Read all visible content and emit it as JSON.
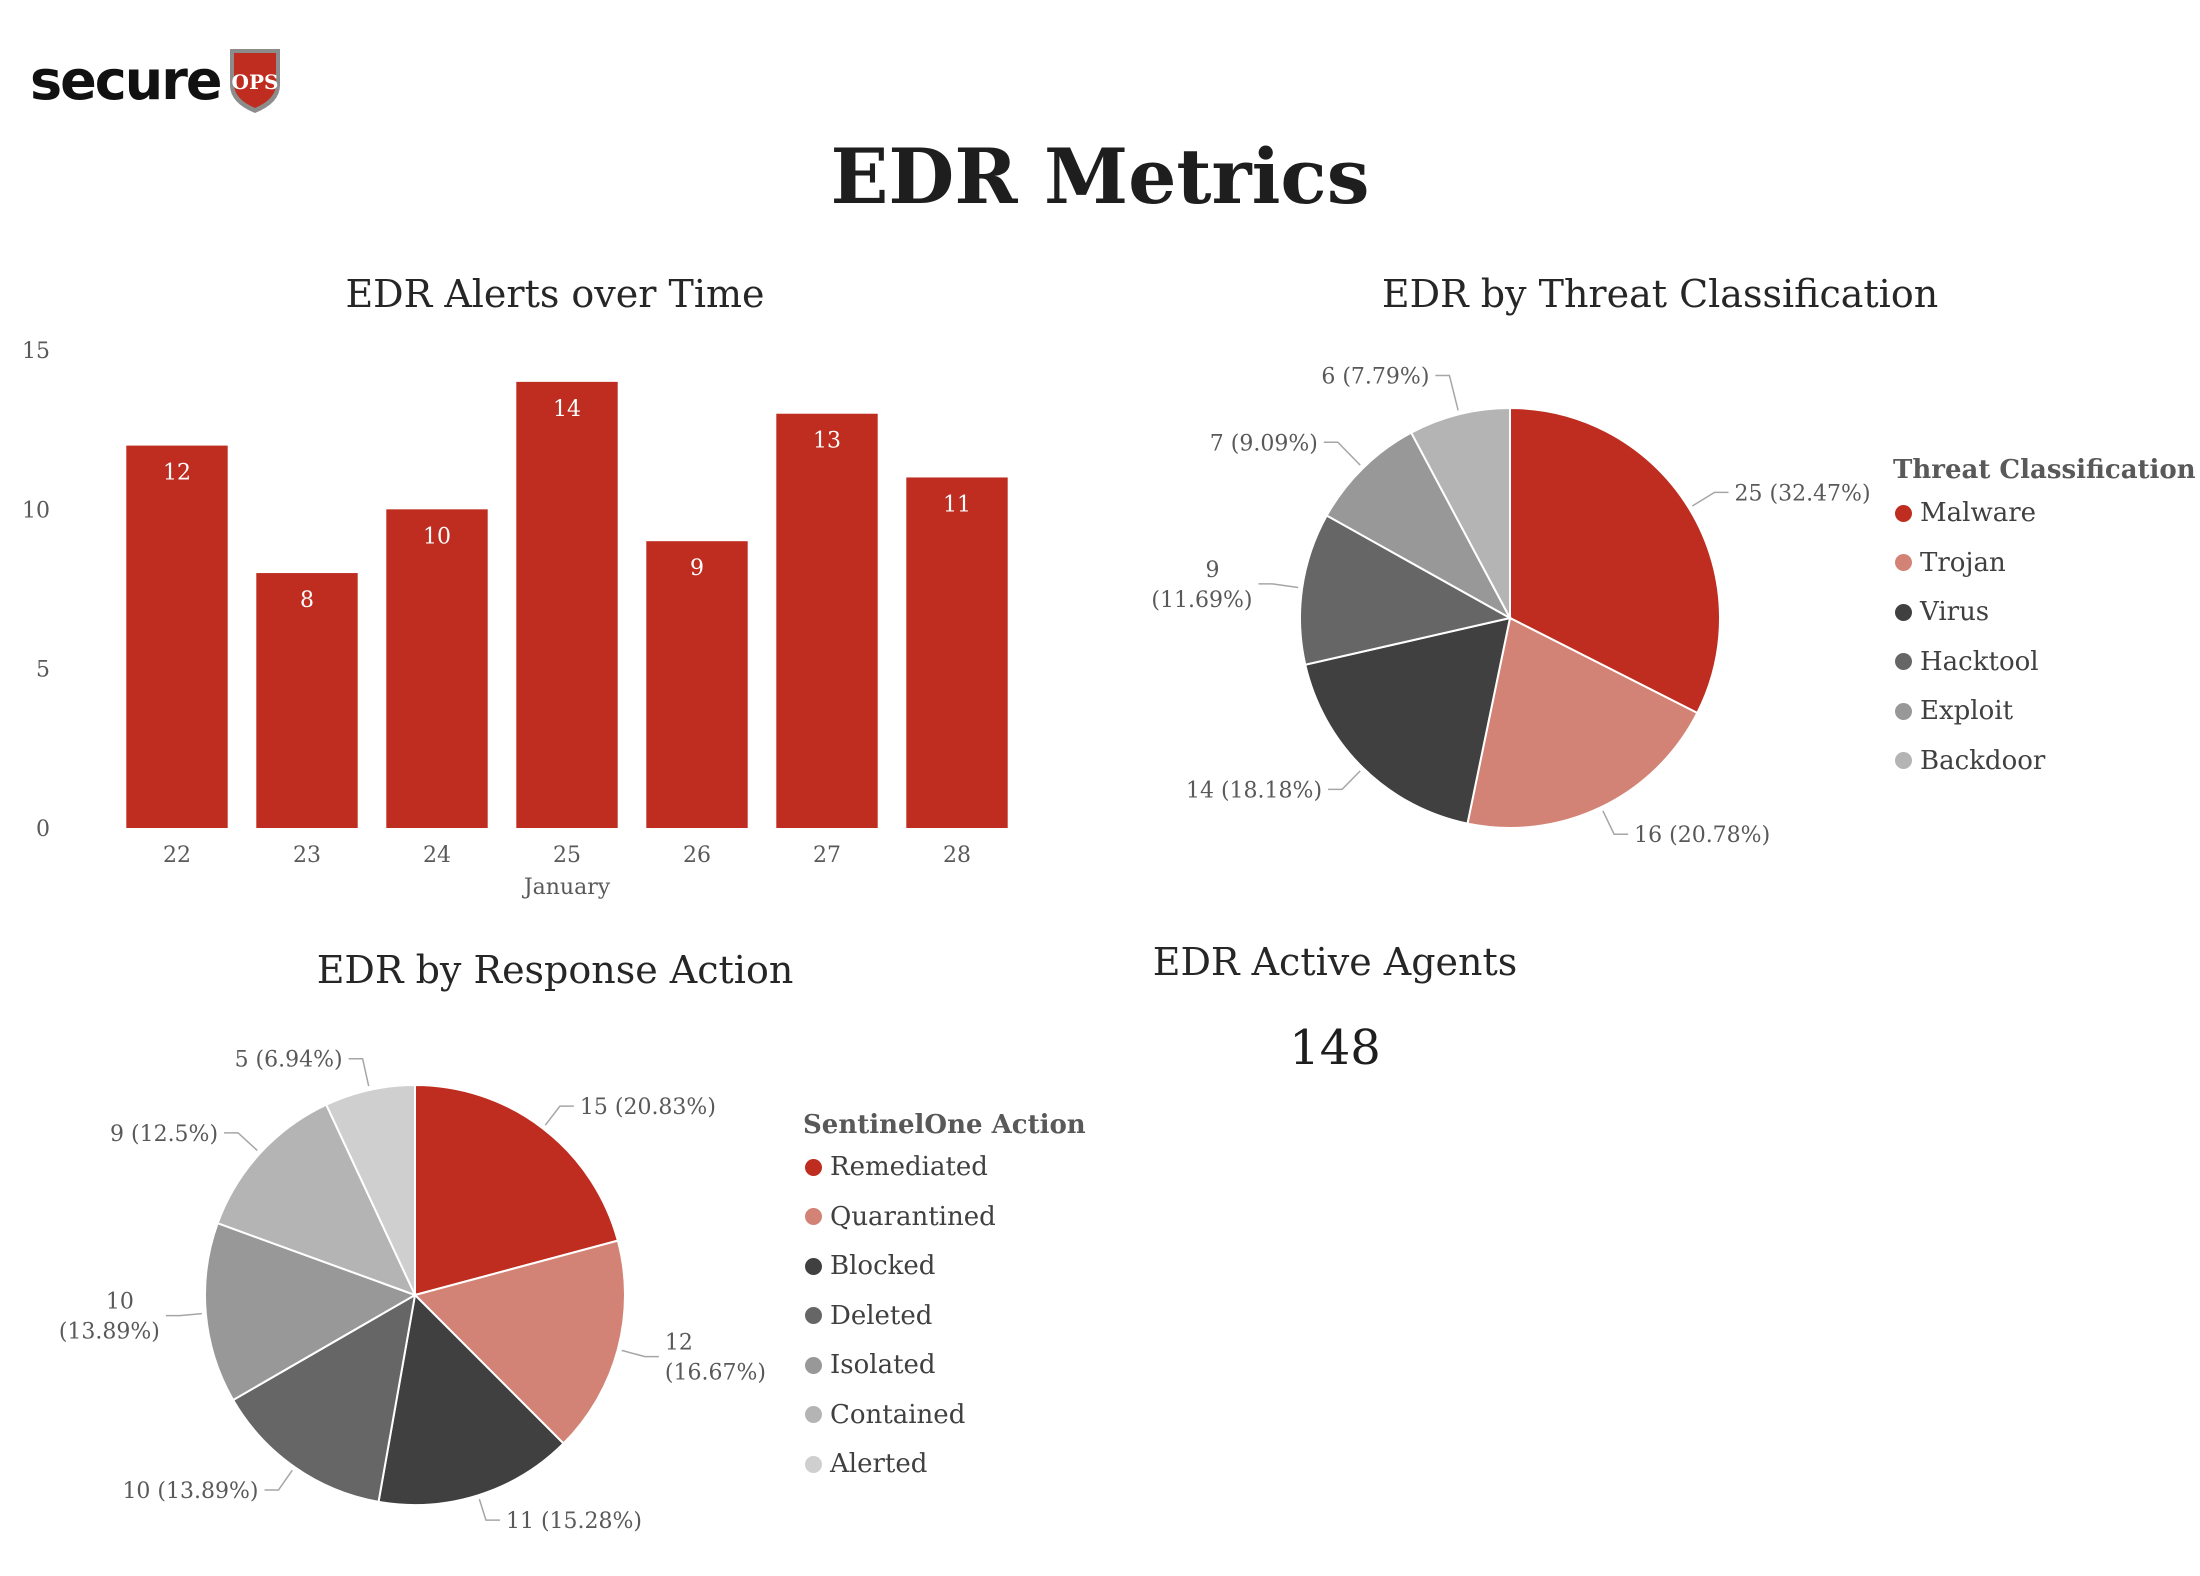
{
  "logo": {
    "text": "secure",
    "badge": "OPS"
  },
  "page_title": "EDR Metrics",
  "colors": {
    "bar": "#BE2D1F",
    "accent_red": "#BE2D1F",
    "salmon": "#D38375",
    "dark": "#404040",
    "mid_dark": "#666666",
    "mid": "#989898",
    "light": "#B4B4B4",
    "lightest": "#CFCFCF"
  },
  "chart_data": [
    {
      "type": "bar",
      "title": "EDR Alerts over Time",
      "categories": [
        "22",
        "23",
        "24",
        "25",
        "26",
        "27",
        "28"
      ],
      "values": [
        12,
        8,
        10,
        14,
        9,
        13,
        11
      ],
      "xlabel": "January",
      "ylabel": "",
      "ylim": [
        0,
        15
      ],
      "yticks": [
        "0",
        "5",
        "10",
        "15"
      ],
      "data_labels": [
        "12",
        "8",
        "10",
        "14",
        "9",
        "13",
        "11"
      ],
      "grid": false,
      "colors": [
        "#BE2D1F"
      ]
    },
    {
      "type": "pie",
      "title": "EDR by Threat Classification",
      "legend_title": "Threat Classification",
      "legend_position": "right",
      "labels": [
        "Malware",
        "Trojan",
        "Virus",
        "Hacktool",
        "Exploit",
        "Backdoor"
      ],
      "values": [
        25,
        16,
        14,
        9,
        7,
        6
      ],
      "data_labels": [
        "25 (32.47%)",
        "16 (20.78%)",
        "14 (18.18%)",
        "9 (11.69%)",
        "7 (9.09%)",
        "6 (7.79%)"
      ],
      "colors": [
        "#BE2D1F",
        "#D38375",
        "#404040",
        "#666666",
        "#989898",
        "#B4B4B4"
      ]
    },
    {
      "type": "pie",
      "title": "EDR by Response Action",
      "legend_title": "SentinelOne Action",
      "legend_position": "right",
      "labels": [
        "Remediated",
        "Quarantined",
        "Blocked",
        "Deleted",
        "Isolated",
        "Contained",
        "Alerted"
      ],
      "values": [
        15,
        12,
        11,
        10,
        10,
        9,
        5
      ],
      "data_labels": [
        "15 (20.83%)",
        "12 (16.67%)",
        "11 (15.28%)",
        "10 (13.89%)",
        "10 (13.89%)",
        "9 (12.5%)",
        "5 (6.94%)"
      ],
      "colors": [
        "#BE2D1F",
        "#D38375",
        "#404040",
        "#666666",
        "#989898",
        "#B4B4B4",
        "#CFCFCF"
      ]
    }
  ],
  "active_agents": {
    "title": "EDR Active Agents",
    "value": "148"
  }
}
